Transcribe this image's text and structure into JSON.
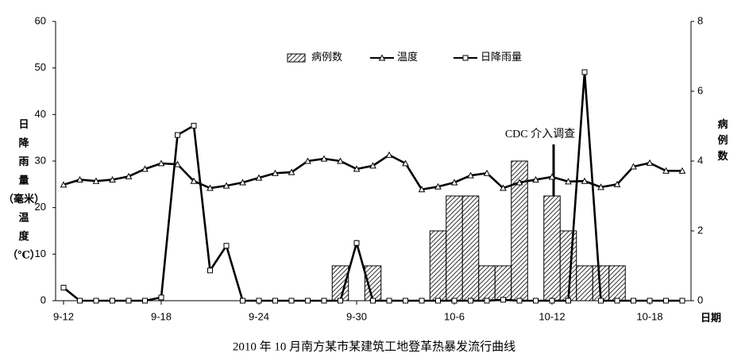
{
  "chart_data": {
    "type": "combo",
    "title": "2010 年 10 月南方某市某建筑工地登革热暴发流行曲线",
    "annotation": "CDC 介入调查",
    "y_label": [
      "日",
      "降",
      "雨",
      "量",
      "（毫米）",
      "温",
      "度",
      "（℃）"
    ],
    "y2_label": [
      "病",
      "例",
      "数"
    ],
    "x_label": "日期",
    "categories": [
      "9-12",
      null,
      null,
      null,
      null,
      null,
      "9-18",
      null,
      null,
      null,
      null,
      null,
      "9-24",
      null,
      null,
      null,
      null,
      null,
      "9-30",
      null,
      null,
      null,
      null,
      null,
      "10-6",
      null,
      null,
      null,
      null,
      null,
      "10-12",
      null,
      null,
      null,
      null,
      null,
      "10-18",
      null,
      null
    ],
    "ylim": [
      0,
      60
    ],
    "yticks": [
      0,
      10,
      20,
      30,
      40,
      50,
      60
    ],
    "y2lim": [
      0,
      8
    ],
    "y2ticks": [
      0,
      2,
      4,
      6,
      8
    ],
    "legend": "top",
    "series": [
      {
        "name": "病例数",
        "type": "bar",
        "axis": "y2",
        "color": "#000000",
        "hatch": true,
        "values": [
          0,
          0,
          0,
          0,
          0,
          0,
          0,
          0,
          0,
          0,
          0,
          0,
          0,
          0,
          0,
          0,
          0,
          1,
          0,
          1,
          0,
          0,
          0,
          2,
          3,
          3,
          1,
          1,
          4,
          0,
          3,
          2,
          1,
          1,
          1,
          0,
          0,
          0,
          0
        ]
      },
      {
        "name": "温度",
        "type": "line",
        "marker": "triangle",
        "color": "#000000",
        "values": [
          24.9,
          26,
          25.7,
          26,
          26.7,
          28.3,
          29.5,
          29.3,
          25.7,
          24.2,
          24.7,
          25.4,
          26.4,
          27.4,
          27.6,
          30,
          30.5,
          30,
          28.3,
          29,
          31.3,
          29.5,
          23.9,
          24.5,
          25.4,
          26.9,
          27.4,
          24.2,
          25.4,
          26,
          26.6,
          25.6,
          25.7,
          24.4,
          25,
          28.8,
          29.6,
          27.9,
          27.9
        ]
      },
      {
        "name": "日降雨量",
        "type": "line",
        "marker": "square",
        "color": "#000000",
        "values": [
          2.8,
          0,
          0,
          0,
          0,
          0,
          0.7,
          35.6,
          37.6,
          6.5,
          11.8,
          0,
          0,
          0,
          0,
          0,
          0,
          0,
          12.4,
          0,
          0,
          0,
          0,
          0,
          0,
          0,
          0,
          0.2,
          0,
          0,
          0,
          0,
          49.1,
          0,
          0,
          0,
          0,
          0,
          0
        ]
      }
    ]
  }
}
